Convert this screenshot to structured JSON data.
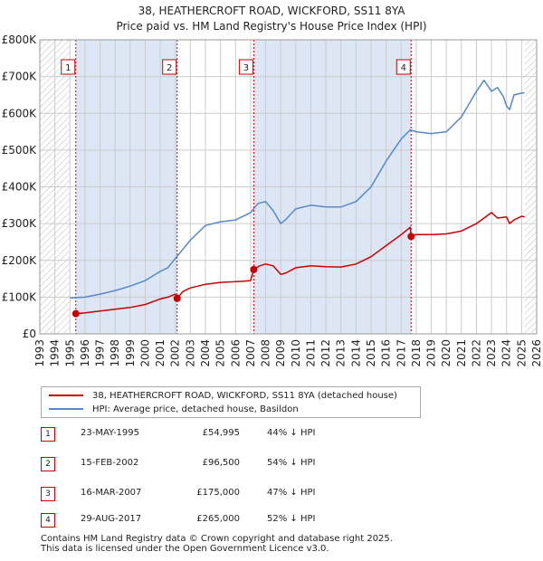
{
  "title": {
    "line1": "38, HEATHERCROFT ROAD, WICKFORD, SS11 8YA",
    "line2": "Price paid vs. HM Land Registry's House Price Index (HPI)"
  },
  "legend": {
    "property": "38, HEATHERCROFT ROAD, WICKFORD, SS11 8YA (detached house)",
    "hpi": "HPI: Average price, detached house, Basildon"
  },
  "sales": [
    {
      "num": "1",
      "date": "23-MAY-1995",
      "price": "£54,995",
      "hpi": "44% ↓ HPI"
    },
    {
      "num": "2",
      "date": "15-FEB-2002",
      "price": "£96,500",
      "hpi": "54% ↓ HPI"
    },
    {
      "num": "3",
      "date": "16-MAR-2007",
      "price": "£175,000",
      "hpi": "47% ↓ HPI"
    },
    {
      "num": "4",
      "date": "29-AUG-2017",
      "price": "£265,000",
      "hpi": "52% ↓ HPI"
    }
  ],
  "footer": {
    "line1": "Contains HM Land Registry data © Crown copyright and database right 2025.",
    "line2": "This data is licensed under the Open Government Licence v3.0."
  },
  "colors": {
    "property": "#cc0000",
    "hpi": "#5588cc",
    "grid": "#cccccc",
    "shade": "#dde6f5",
    "hatch": "#bbbbbb"
  },
  "chart_data": {
    "type": "line",
    "title": "38, HEATHERCROFT ROAD, WICKFORD, SS11 8YA — Price paid vs. HM Land Registry's House Price Index (HPI)",
    "xlabel": "",
    "ylabel": "",
    "xlim": [
      1993,
      2026
    ],
    "ylim": [
      0,
      800000
    ],
    "x_ticks": [
      1993,
      1994,
      1995,
      1996,
      1997,
      1998,
      1999,
      2000,
      2001,
      2002,
      2003,
      2004,
      2005,
      2006,
      2007,
      2008,
      2009,
      2010,
      2011,
      2012,
      2013,
      2014,
      2015,
      2016,
      2017,
      2018,
      2019,
      2020,
      2021,
      2022,
      2023,
      2024,
      2025,
      2026
    ],
    "y_ticks": [
      0,
      100000,
      200000,
      300000,
      400000,
      500000,
      600000,
      700000,
      800000
    ],
    "y_tick_labels": [
      "£0",
      "£100K",
      "£200K",
      "£300K",
      "£400K",
      "£500K",
      "£600K",
      "£700K",
      "£800K"
    ],
    "data_start": 1995.0,
    "data_end": 2025.2,
    "grid": true,
    "series": [
      {
        "name": "38, HEATHERCROFT ROAD, WICKFORD, SS11 8YA (detached house)",
        "color": "#cc0000",
        "x": [
          1995.39,
          1996,
          1997,
          1998,
          1999,
          2000,
          2001,
          2001.5,
          2002.0,
          2002.12,
          2002.5,
          2003,
          2004,
          2005,
          2006,
          2006.5,
          2007.0,
          2007.21,
          2007.6,
          2008,
          2008.5,
          2009.0,
          2009.3,
          2010,
          2011,
          2012,
          2013,
          2014,
          2015,
          2016,
          2017.0,
          2017.6,
          2017.66,
          2018,
          2019,
          2020,
          2021,
          2022,
          2022.5,
          2023,
          2023.4,
          2024,
          2024.2,
          2024.5,
          2025,
          2025.2
        ],
        "y": [
          54995,
          57000,
          62000,
          67000,
          72000,
          80000,
          95000,
          100000,
          108000,
          96500,
          115000,
          125000,
          135000,
          140000,
          142000,
          143000,
          145000,
          175000,
          185000,
          190000,
          185000,
          162000,
          165000,
          180000,
          185000,
          183000,
          182000,
          190000,
          210000,
          240000,
          270000,
          290000,
          265000,
          270000,
          270000,
          272000,
          280000,
          300000,
          315000,
          330000,
          315000,
          318000,
          300000,
          310000,
          320000,
          318000
        ]
      },
      {
        "name": "HPI: Average price, detached house, Basildon",
        "color": "#5588cc",
        "x": [
          1995.0,
          1996,
          1997,
          1998,
          1999,
          2000,
          2001,
          2001.5,
          2002,
          2003,
          2004,
          2005,
          2006,
          2007,
          2007.5,
          2008,
          2008.5,
          2009.0,
          2009.3,
          2010,
          2011,
          2012,
          2013,
          2014,
          2015,
          2016,
          2017,
          2017.6,
          2018,
          2019,
          2020,
          2021,
          2022,
          2022.5,
          2023,
          2023.4,
          2023.8,
          2024,
          2024.2,
          2024.5,
          2025,
          2025.2
        ],
        "y": [
          98000,
          100000,
          108000,
          118000,
          130000,
          145000,
          170000,
          180000,
          205000,
          255000,
          295000,
          305000,
          310000,
          330000,
          355000,
          360000,
          335000,
          300000,
          310000,
          340000,
          350000,
          345000,
          345000,
          360000,
          400000,
          470000,
          530000,
          555000,
          550000,
          545000,
          550000,
          590000,
          660000,
          690000,
          660000,
          670000,
          645000,
          620000,
          610000,
          650000,
          655000,
          656000
        ]
      }
    ],
    "annotations": [
      {
        "label": "1",
        "x": 1995.39
      },
      {
        "label": "2",
        "x": 2002.12
      },
      {
        "label": "3",
        "x": 2007.21
      },
      {
        "label": "4",
        "x": 2017.66
      }
    ]
  }
}
